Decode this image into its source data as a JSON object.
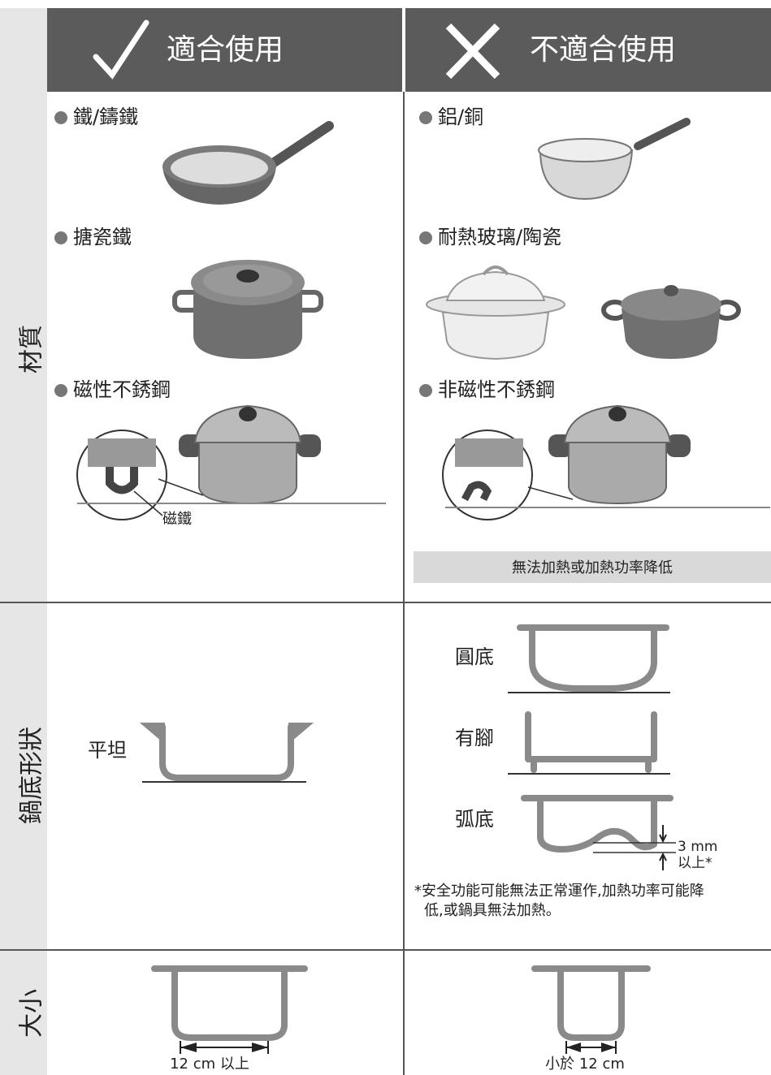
{
  "header": {
    "suitable": "適合使用",
    "unsuitable": "不適合使用"
  },
  "rows": {
    "material": "材質",
    "shape": "鍋底形狀",
    "size": "大小"
  },
  "material": {
    "suitable": {
      "items": [
        "鐵/鑄鐵",
        "搪瓷鐵",
        "磁性不銹鋼"
      ],
      "magnet": "磁鐵"
    },
    "unsuitable": {
      "items": [
        "鋁/銅",
        "耐熱玻璃/陶瓷",
        "非磁性不銹鋼"
      ],
      "note": "無法加熱或加熱功率降低"
    }
  },
  "shape": {
    "suitable": {
      "label": "平坦"
    },
    "unsuitable": {
      "labels": [
        "圓底",
        "有腳",
        "弧底"
      ],
      "gap": "3 mm",
      "gap_note": "以上*",
      "footnote": [
        "*安全功能可能無法正常運作,加熱功率可能降",
        "低,或鍋具無法加熱。"
      ]
    }
  },
  "size": {
    "suitable": "12 cm 以上",
    "unsuitable": "小於 12 cm"
  }
}
